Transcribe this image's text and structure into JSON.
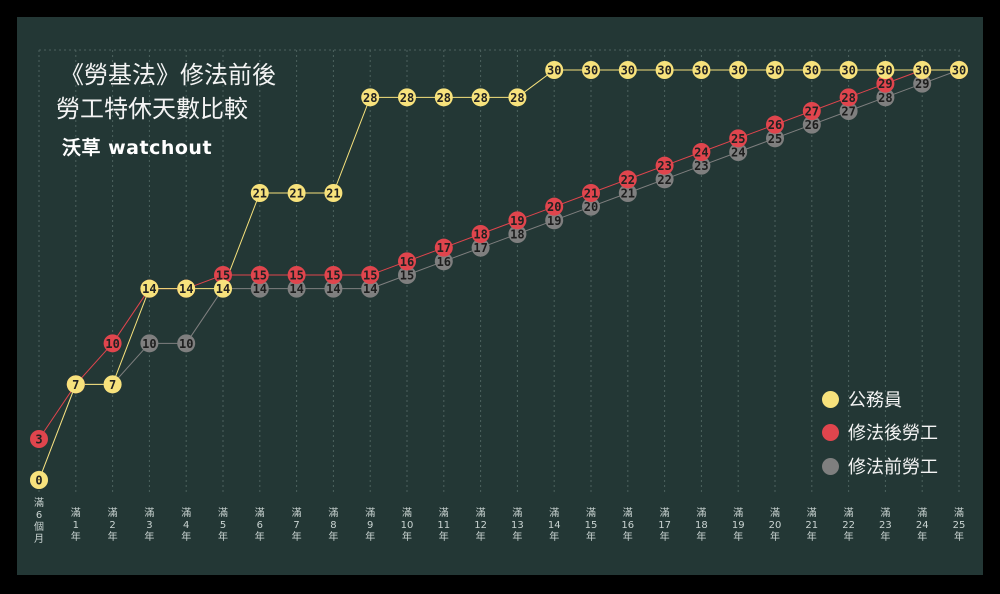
{
  "title_lines": [
    "《勞基法》修法前後",
    "勞工特休天數比較"
  ],
  "brand": "沃草 watchout",
  "chart_data": {
    "type": "line",
    "categories": [
      "滿6個月",
      "滿1年",
      "滿2年",
      "滿3年",
      "滿4年",
      "滿5年",
      "滿6年",
      "滿7年",
      "滿8年",
      "滿9年",
      "滿10年",
      "滿11年",
      "滿12年",
      "滿13年",
      "滿14年",
      "滿15年",
      "滿16年",
      "滿17年",
      "滿18年",
      "滿19年",
      "滿20年",
      "滿21年",
      "滿22年",
      "滿23年",
      "滿24年",
      "滿25年"
    ],
    "series": [
      {
        "name": "公務員",
        "color": "#f7e27c",
        "text_color": "#222222",
        "values": [
          0,
          7,
          7,
          14,
          14,
          14,
          21,
          21,
          21,
          28,
          28,
          28,
          28,
          28,
          30,
          30,
          30,
          30,
          30,
          30,
          30,
          30,
          30,
          30,
          30,
          30
        ]
      },
      {
        "name": "修法後勞工",
        "color": "#e0454d",
        "text_color": "#222222",
        "values": [
          3,
          7,
          10,
          14,
          14,
          15,
          15,
          15,
          15,
          15,
          16,
          17,
          18,
          19,
          20,
          21,
          22,
          23,
          24,
          25,
          26,
          27,
          28,
          29,
          30,
          30
        ]
      },
      {
        "name": "修法前勞工",
        "color": "#7f7f7f",
        "text_color": "#1e1e1e",
        "values": [
          0,
          7,
          7,
          10,
          10,
          14,
          14,
          14,
          14,
          14,
          15,
          16,
          17,
          18,
          19,
          20,
          21,
          22,
          23,
          24,
          25,
          26,
          27,
          28,
          29,
          30
        ]
      }
    ],
    "ylim": [
      0,
      30
    ],
    "grid": "dashed vertical",
    "legend_position": "bottom-right"
  },
  "legend": [
    {
      "label": "公務員",
      "color": "#f7e27c"
    },
    {
      "label": "修法後勞工",
      "color": "#e0454d"
    },
    {
      "label": "修法前勞工",
      "color": "#7f7f7f"
    }
  ]
}
